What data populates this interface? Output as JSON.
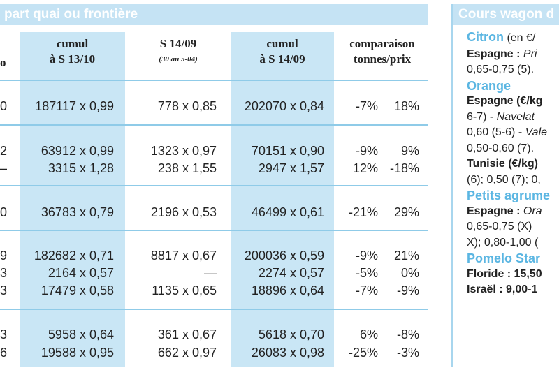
{
  "header": {
    "title": "part quai ou frontière"
  },
  "columns": {
    "c0": "o",
    "c1_line1": "cumul",
    "c1_line2": "à S 13/10",
    "c2_line1": "S 14/09",
    "c2_sub": "(30 au 5-04)",
    "c3_line1": "cumul",
    "c3_line2": "à S 14/09",
    "c4_line1": "comparaison",
    "c4_line2": "tonnes/prix"
  },
  "rows": [
    {
      "first": "0",
      "cumul_prev": "187117 x 0,99",
      "week": "778 x 0,85",
      "cumul": "202070 x 0,84",
      "tonnes": "-7%",
      "prix": "18%"
    },
    {
      "first": "2",
      "cumul_prev": "63912 x 0,99",
      "week": "1323 x 0,97",
      "cumul": "70151 x 0,90",
      "tonnes": "-9%",
      "prix": "9%"
    },
    {
      "first": "—",
      "cumul_prev": "3315 x 1,28",
      "week": "238 x 1,55",
      "cumul": "2947 x 1,57",
      "tonnes": "12%",
      "prix": "-18%"
    },
    {
      "first": "0",
      "cumul_prev": "36783 x 0,79",
      "week": "2196 x 0,53",
      "cumul": "46499 x 0,61",
      "tonnes": "-21%",
      "prix": "29%"
    },
    {
      "first": "9",
      "cumul_prev": "182682 x 0,71",
      "week": "8817 x 0,67",
      "cumul": "200036 x 0,59",
      "tonnes": "-9%",
      "prix": "21%"
    },
    {
      "first": "3",
      "cumul_prev": "2164 x 0,57",
      "week": "—",
      "cumul": "2274 x 0,57",
      "tonnes": "-5%",
      "prix": "0%"
    },
    {
      "first": "3",
      "cumul_prev": "17479 x 0,58",
      "week": "1135 x 0,65",
      "cumul": "18896 x 0,64",
      "tonnes": "-7%",
      "prix": "-9%"
    },
    {
      "first": "3",
      "cumul_prev": "5958 x 0,64",
      "week": "361 x 0,67",
      "cumul": "5618 x 0,70",
      "tonnes": "6%",
      "prix": "-8%"
    },
    {
      "first": "6",
      "cumul_prev": "19588 x 0,95",
      "week": "662 x 0,97",
      "cumul": "26083 x 0,98",
      "tonnes": "-25%",
      "prix": "-3%"
    }
  ],
  "panel": {
    "title": "Cours wagon d",
    "citron_head": "Citron",
    "citron_unit": "(en €/",
    "citron_l1_b": "Espagne :",
    "citron_l1_i": "Pri",
    "citron_l2": "0,65-0,75 (5).",
    "orange_head": "Orange",
    "orange_l1": "Espagne (€/kg",
    "orange_l2a": "6-7) - ",
    "orange_l2i": "Navelat",
    "orange_l3a": "0,60 (5-6) - ",
    "orange_l3i": "Vale",
    "orange_l4": "0,50-0,60 (7).",
    "tunisie_l1": "Tunisie (€/kg)",
    "tunisie_l2": "(6); 0,50 (7); 0,",
    "petits_head": "Petits agrume",
    "petits_l1_b": "Espagne : ",
    "petits_l1_i": "Ora",
    "petits_l2": "0,65-0,75 (X)",
    "petits_l3": "X); 0,80-1,00 (",
    "pomelo_head": "Pomelo Star",
    "floride": "Floride : 15,50",
    "israel": "Israël : 9,00-1"
  }
}
